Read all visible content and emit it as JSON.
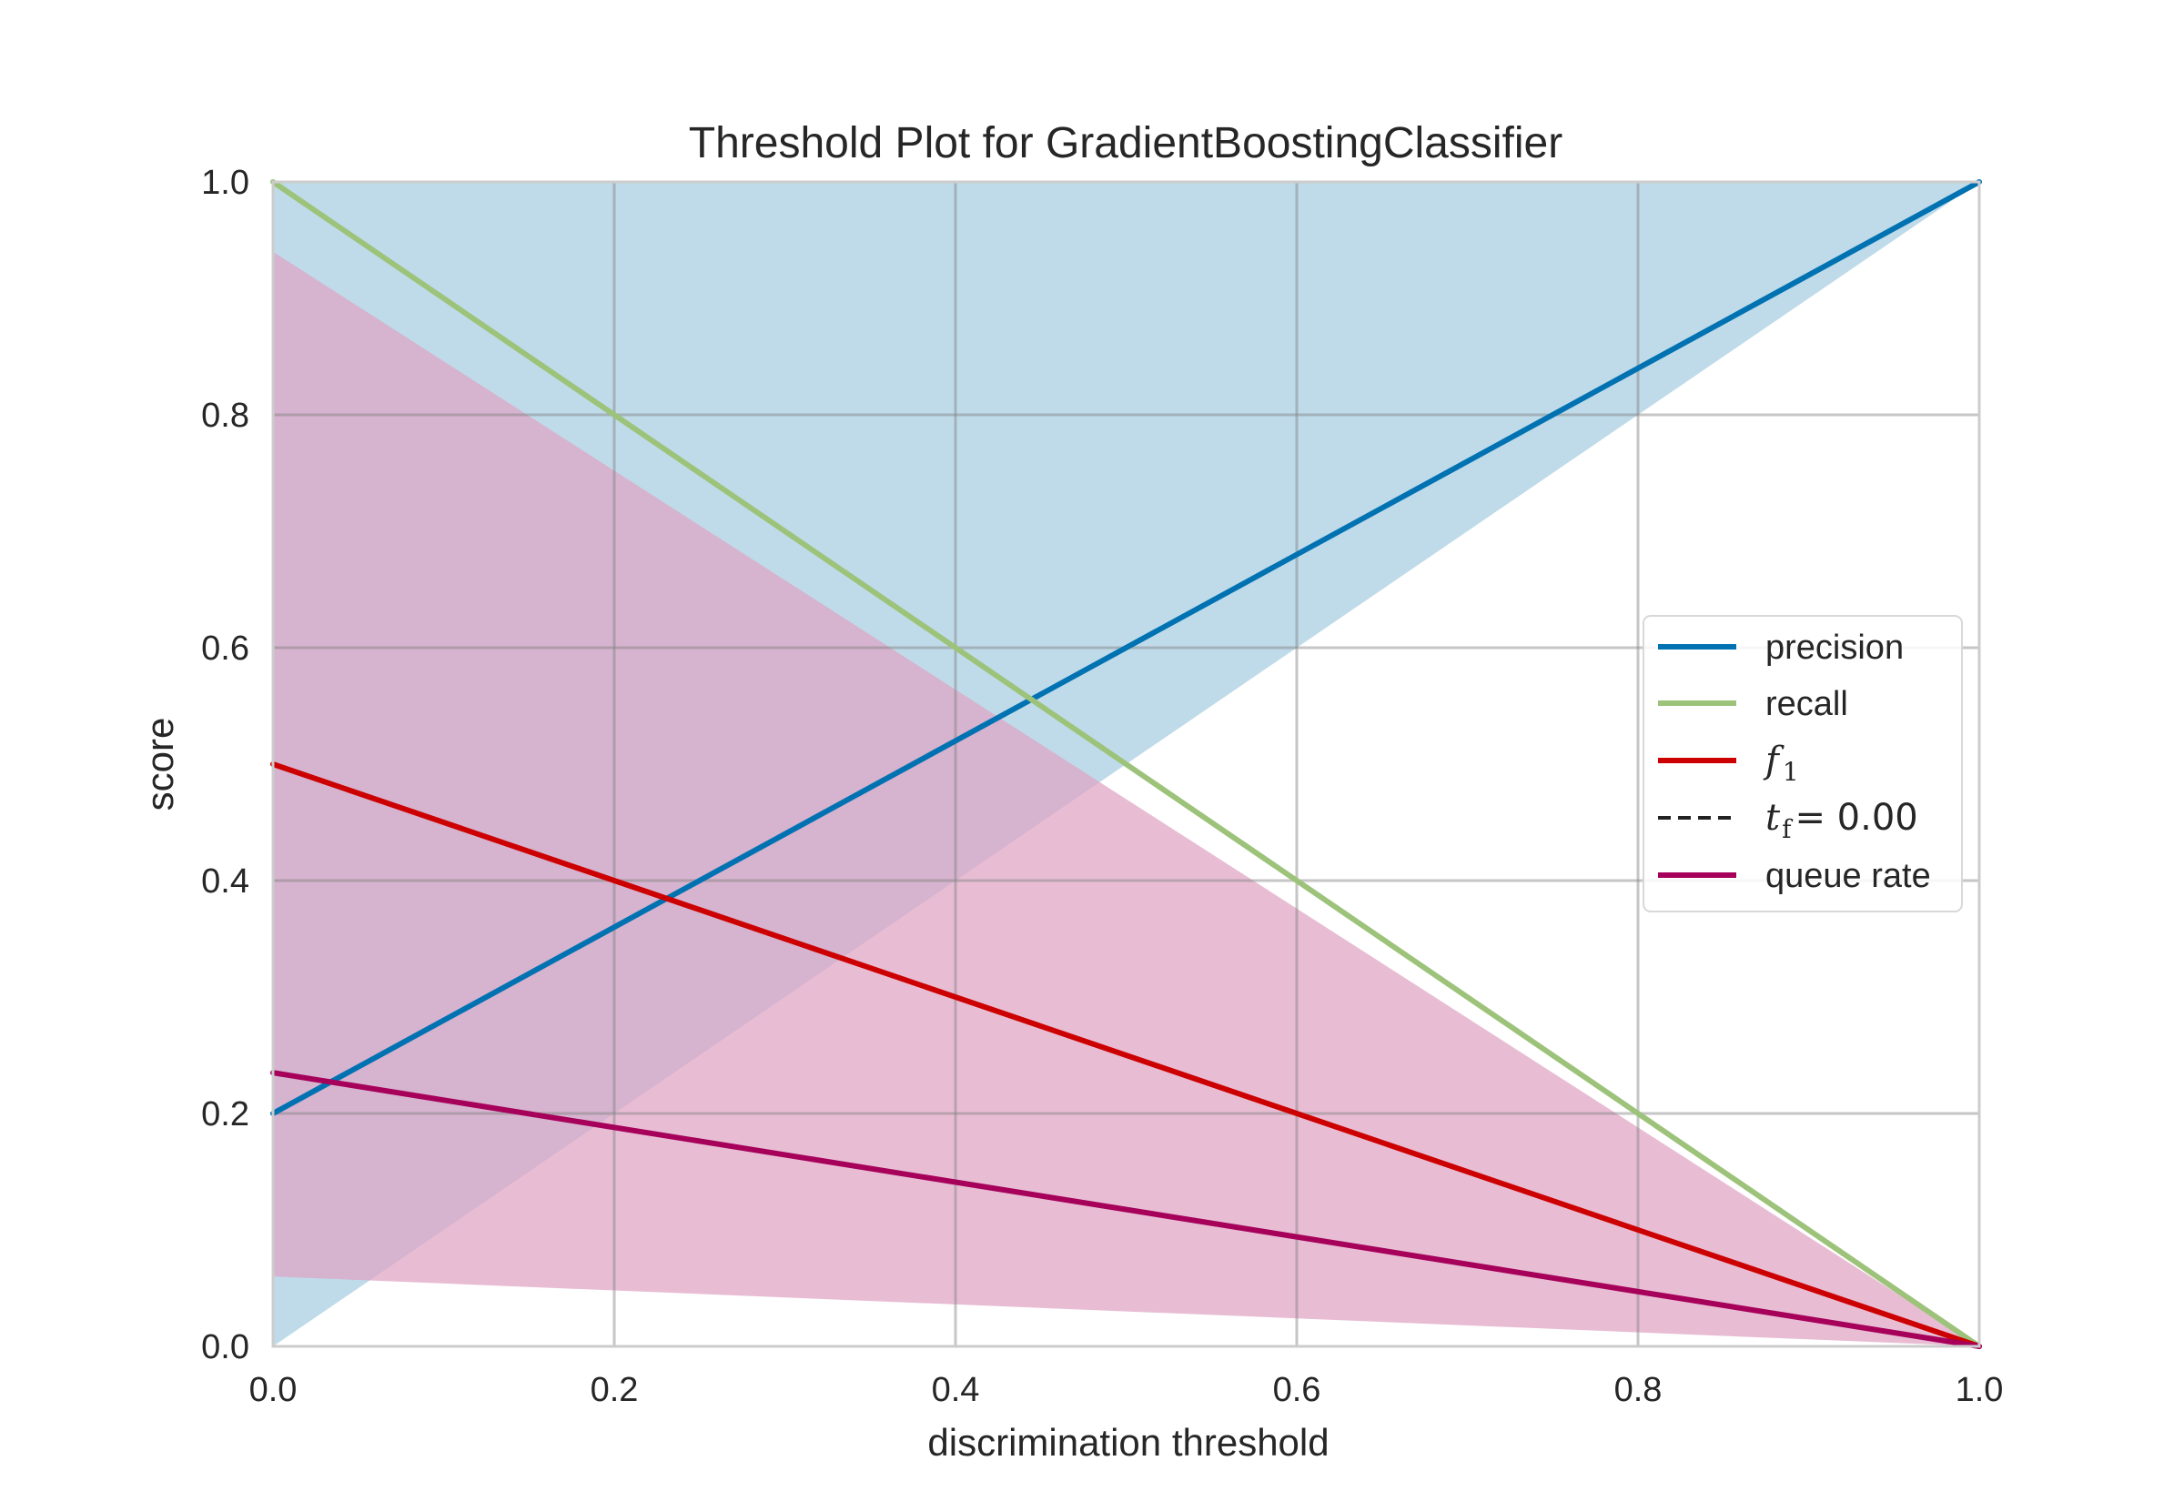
{
  "chart_data": {
    "type": "line",
    "title": "Threshold Plot for GradientBoostingClassifier",
    "xlabel": "discrimination threshold",
    "ylabel": "score",
    "xlim": [
      0.0,
      1.0
    ],
    "ylim": [
      0.0,
      1.0
    ],
    "xticks": [
      "0.0",
      "0.2",
      "0.4",
      "0.6",
      "0.8",
      "1.0"
    ],
    "yticks": [
      "0.0",
      "0.2",
      "0.4",
      "0.6",
      "0.8",
      "1.0"
    ],
    "grid": true,
    "legend_position": "center-right",
    "series": [
      {
        "name": "precision",
        "color": "#0072b2",
        "x": [
          0.0,
          1.0
        ],
        "y": [
          0.2,
          1.0
        ],
        "band": {
          "color": "#a6cde0",
          "lower": [
            0.0,
            1.0
          ],
          "upper": [
            1.0,
            1.0
          ]
        }
      },
      {
        "name": "recall",
        "color": "#9dc37a",
        "x": [
          0.0,
          1.0
        ],
        "y": [
          1.0,
          0.0
        ]
      },
      {
        "name": "f_1",
        "color": "#cc0000",
        "x": [
          0.0,
          1.0
        ],
        "y": [
          0.5,
          0.0
        ]
      },
      {
        "name": "t_f = 0.00",
        "color": "#222222",
        "style": "dashed",
        "legend_only": true
      },
      {
        "name": "queue rate",
        "color": "#a6005a",
        "x": [
          0.0,
          1.0
        ],
        "y": [
          0.235,
          0.0
        ],
        "band": {
          "color": "#dfa4c4",
          "lower": [
            0.06,
            0.0
          ],
          "upper": [
            0.94,
            0.0
          ]
        }
      }
    ]
  },
  "legend": {
    "precision": "precision",
    "recall": "recall",
    "f1_main": "f",
    "f1_sub": "1",
    "tf_main": "t",
    "tf_sub": "f",
    "tf_value": "= 0.00",
    "queue_rate": "queue rate"
  }
}
